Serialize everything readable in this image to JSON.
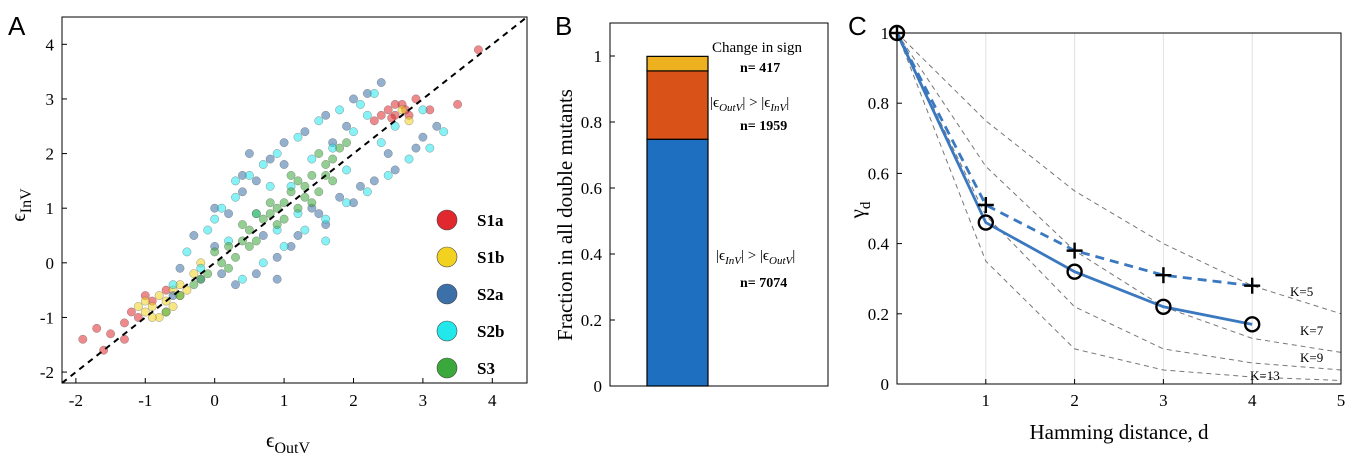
{
  "panels": {
    "a": "A",
    "b": "B",
    "c": "C"
  },
  "chart_data": [
    {
      "type": "scatter",
      "xlabel": {
        "base": "ϵ",
        "sub": "OutV"
      },
      "ylabel": {
        "base": "ϵ",
        "sub": "InV"
      },
      "xlim": [
        -2.2,
        4.5
      ],
      "ylim": [
        -2.2,
        4.5
      ],
      "xticks": [
        -2,
        -1,
        0,
        1,
        2,
        3,
        4
      ],
      "yticks": [
        -2,
        -1,
        0,
        1,
        2,
        3,
        4
      ],
      "reference_line": {
        "style": "dashed",
        "relation": "y = x"
      },
      "legend_position": "bottom-right",
      "series": [
        {
          "name": "S1a",
          "color": "#e0282e",
          "points": [
            [
              -1.9,
              -1.4
            ],
            [
              -1.6,
              -1.6
            ],
            [
              -1.5,
              -1.3
            ],
            [
              -1.3,
              -1.1
            ],
            [
              -1.2,
              -0.9
            ],
            [
              -1.1,
              -1.0
            ],
            [
              -0.9,
              -0.7
            ],
            [
              -1.0,
              -0.6
            ],
            [
              -0.7,
              -0.5
            ],
            [
              -1.3,
              -1.4
            ],
            [
              -1.7,
              -1.2
            ],
            [
              2.3,
              2.6
            ],
            [
              2.5,
              2.8
            ],
            [
              2.6,
              2.7
            ],
            [
              2.7,
              2.9
            ],
            [
              2.8,
              2.7
            ],
            [
              2.6,
              2.9
            ],
            [
              2.55,
              2.65
            ],
            [
              2.75,
              2.8
            ],
            [
              3.8,
              3.9
            ],
            [
              3.5,
              2.9
            ],
            [
              2.4,
              2.7
            ],
            [
              2.9,
              3.0
            ],
            [
              3.1,
              2.8
            ]
          ]
        },
        {
          "name": "S1b",
          "color": "#f2d21e",
          "points": [
            [
              -1.0,
              -0.9
            ],
            [
              -0.9,
              -0.8
            ],
            [
              -0.8,
              -1.0
            ],
            [
              -0.7,
              -0.7
            ],
            [
              -0.6,
              -0.5
            ],
            [
              -1.1,
              -0.8
            ],
            [
              -0.5,
              -0.4
            ],
            [
              -0.9,
              -1.0
            ],
            [
              -0.4,
              -0.5
            ],
            [
              -0.8,
              -0.6
            ],
            [
              -0.6,
              -0.8
            ],
            [
              -0.3,
              -0.2
            ],
            [
              -0.7,
              -0.9
            ],
            [
              2.7,
              2.8
            ],
            [
              2.8,
              2.6
            ],
            [
              -0.2,
              0.0
            ],
            [
              -1.0,
              -0.7
            ],
            [
              -0.5,
              -0.6
            ]
          ]
        },
        {
          "name": "S2a",
          "color": "#3b70a8",
          "points": [
            [
              -0.5,
              -0.1
            ],
            [
              -0.3,
              0.5
            ],
            [
              0.0,
              0.3
            ],
            [
              0.2,
              0.9
            ],
            [
              0.4,
              1.3
            ],
            [
              0.6,
              1.5
            ],
            [
              0.8,
              1.9
            ],
            [
              1.0,
              2.2
            ],
            [
              1.3,
              2.4
            ],
            [
              1.6,
              2.7
            ],
            [
              2.0,
              3.0
            ],
            [
              2.2,
              3.1
            ],
            [
              2.4,
              3.3
            ],
            [
              0.3,
              -0.4
            ],
            [
              0.6,
              -0.2
            ],
            [
              0.9,
              0.1
            ],
            [
              1.2,
              0.5
            ],
            [
              1.5,
              0.9
            ],
            [
              1.8,
              1.2
            ],
            [
              2.1,
              1.4
            ],
            [
              2.6,
              1.7
            ],
            [
              2.9,
              2.1
            ],
            [
              3.2,
              2.5
            ],
            [
              0.0,
              1.0
            ],
            [
              0.5,
              2.0
            ],
            [
              1.1,
              0.3
            ],
            [
              -0.2,
              -0.3
            ],
            [
              1.7,
              2.2
            ],
            [
              2.5,
              2.0
            ],
            [
              0.7,
              0.5
            ],
            [
              1.4,
              1.0
            ],
            [
              0.1,
              -0.2
            ],
            [
              -0.6,
              -0.6
            ],
            [
              2.3,
              1.5
            ],
            [
              1.9,
              2.5
            ],
            [
              3.0,
              2.3
            ],
            [
              0.4,
              1.6
            ],
            [
              0.9,
              -0.3
            ],
            [
              1.6,
              0.7
            ],
            [
              1.0,
              1.8
            ],
            [
              2.0,
              1.1
            ]
          ]
        },
        {
          "name": "S2b",
          "color": "#22e8ec",
          "points": [
            [
              -0.4,
              0.2
            ],
            [
              -0.1,
              0.6
            ],
            [
              0.1,
              1.0
            ],
            [
              0.3,
              1.2
            ],
            [
              0.5,
              1.6
            ],
            [
              0.7,
              1.8
            ],
            [
              0.9,
              2.0
            ],
            [
              1.2,
              2.3
            ],
            [
              1.5,
              2.6
            ],
            [
              1.8,
              2.8
            ],
            [
              2.1,
              2.9
            ],
            [
              2.3,
              3.1
            ],
            [
              0.4,
              -0.3
            ],
            [
              0.7,
              0.0
            ],
            [
              1.0,
              0.3
            ],
            [
              1.3,
              0.6
            ],
            [
              1.6,
              0.8
            ],
            [
              1.9,
              1.1
            ],
            [
              2.2,
              1.3
            ],
            [
              2.5,
              1.6
            ],
            [
              2.8,
              1.9
            ],
            [
              3.1,
              2.1
            ],
            [
              3.3,
              2.4
            ],
            [
              0.2,
              0.4
            ],
            [
              0.6,
              0.9
            ],
            [
              1.1,
              1.4
            ],
            [
              1.4,
              1.9
            ],
            [
              2.0,
              2.4
            ],
            [
              2.4,
              2.2
            ],
            [
              -0.2,
              -0.1
            ],
            [
              0.0,
              0.8
            ],
            [
              0.8,
              1.4
            ],
            [
              1.7,
              2.1
            ],
            [
              2.6,
              2.5
            ],
            [
              1.2,
              0.9
            ],
            [
              0.9,
              0.6
            ],
            [
              1.6,
              0.4
            ],
            [
              2.2,
              2.7
            ],
            [
              -0.6,
              -0.4
            ],
            [
              3.0,
              2.8
            ],
            [
              0.3,
              1.5
            ],
            [
              1.9,
              1.7
            ]
          ]
        },
        {
          "name": "S3",
          "color": "#3aa83a",
          "points": [
            [
              -0.7,
              -0.9
            ],
            [
              -0.5,
              -0.6
            ],
            [
              -0.3,
              -0.4
            ],
            [
              -0.1,
              -0.2
            ],
            [
              0.1,
              0.0
            ],
            [
              0.2,
              0.3
            ],
            [
              0.4,
              0.4
            ],
            [
              0.5,
              0.6
            ],
            [
              0.7,
              0.8
            ],
            [
              0.8,
              0.9
            ],
            [
              1.0,
              1.1
            ],
            [
              1.1,
              1.3
            ],
            [
              1.3,
              1.4
            ],
            [
              1.4,
              1.6
            ],
            [
              1.6,
              1.8
            ],
            [
              1.7,
              1.9
            ],
            [
              1.8,
              2.1
            ],
            [
              0.3,
              0.1
            ],
            [
              0.6,
              0.4
            ],
            [
              0.9,
              0.7
            ],
            [
              1.2,
              1.0
            ],
            [
              1.5,
              1.3
            ],
            [
              1.7,
              1.5
            ],
            [
              0.0,
              0.2
            ],
            [
              0.4,
              0.7
            ],
            [
              0.8,
              1.1
            ],
            [
              1.1,
              1.6
            ],
            [
              1.5,
              2.0
            ],
            [
              -0.2,
              -0.3
            ],
            [
              0.2,
              -0.1
            ],
            [
              0.6,
              0.9
            ],
            [
              1.0,
              0.8
            ],
            [
              1.3,
              1.2
            ],
            [
              1.6,
              1.6
            ],
            [
              0.9,
              1.0
            ],
            [
              1.2,
              1.5
            ],
            [
              0.5,
              0.3
            ],
            [
              1.9,
              2.2
            ],
            [
              1.4,
              1.1
            ]
          ]
        }
      ]
    },
    {
      "type": "bar",
      "stacked": true,
      "ylabel": "Fraction in all double mutants",
      "ylim": [
        0,
        1.1
      ],
      "yticks": [
        "0",
        "0.2",
        "0.4",
        "0.6",
        "0.8",
        "1"
      ],
      "segments": [
        {
          "color": "#1f6fc0",
          "value": 0.7477,
          "label": "|ϵ_InV| > |ϵ_OutV|",
          "label_base": [
            "|ϵ",
            "| > |ϵ",
            "|"
          ],
          "label_subs": [
            "InV",
            "OutV"
          ],
          "count_text": "n= 7074"
        },
        {
          "color": "#d95319",
          "value": 0.2071,
          "label": "|ϵ_OutV| > |ϵ_InV|",
          "label_base": [
            "|ϵ",
            "| > |ϵ",
            "|"
          ],
          "label_subs": [
            "OutV",
            "InV"
          ],
          "count_text": "n= 1959"
        },
        {
          "color": "#edb120",
          "value": 0.0441,
          "label": "Change in sign",
          "count_text": "n= 417"
        }
      ]
    },
    {
      "type": "line",
      "xlabel": "Hamming distance, d",
      "ylabel": "γ",
      "ylabel_sub": "d",
      "xlim": [
        0,
        5
      ],
      "ylim": [
        0,
        1
      ],
      "xticks": [
        "1",
        "2",
        "3",
        "4",
        "5"
      ],
      "yticks": [
        "0",
        "0.2",
        "0.4",
        "0.6",
        "0.8",
        "1"
      ],
      "x_grid": true,
      "series": [
        {
          "style": "solid",
          "marker": "circle",
          "color": "#3a78c0",
          "x": [
            0,
            1,
            2,
            3,
            4
          ],
          "y": [
            1.0,
            0.46,
            0.32,
            0.22,
            0.17
          ]
        },
        {
          "style": "dashed",
          "marker": "plus",
          "color": "#3a78c0",
          "x": [
            1,
            2,
            3,
            4
          ],
          "y": [
            0.51,
            0.38,
            0.31,
            0.28
          ],
          "join_from": [
            0,
            1.0
          ]
        }
      ],
      "reference_curves": [
        {
          "name": "K=5",
          "x": [
            0,
            1,
            2,
            3,
            4,
            5
          ],
          "y": [
            1.0,
            0.75,
            0.55,
            0.4,
            0.28,
            0.2
          ]
        },
        {
          "name": "K=7",
          "x": [
            0,
            1,
            2,
            3,
            4,
            5
          ],
          "y": [
            1.0,
            0.62,
            0.38,
            0.22,
            0.13,
            0.09
          ]
        },
        {
          "name": "K=9",
          "x": [
            0,
            1,
            2,
            3,
            4,
            5
          ],
          "y": [
            1.0,
            0.48,
            0.22,
            0.1,
            0.06,
            0.04
          ]
        },
        {
          "name": "K=13",
          "x": [
            0,
            1,
            2,
            3,
            4,
            5
          ],
          "y": [
            1.0,
            0.35,
            0.1,
            0.04,
            0.02,
            0.01
          ]
        }
      ]
    }
  ]
}
